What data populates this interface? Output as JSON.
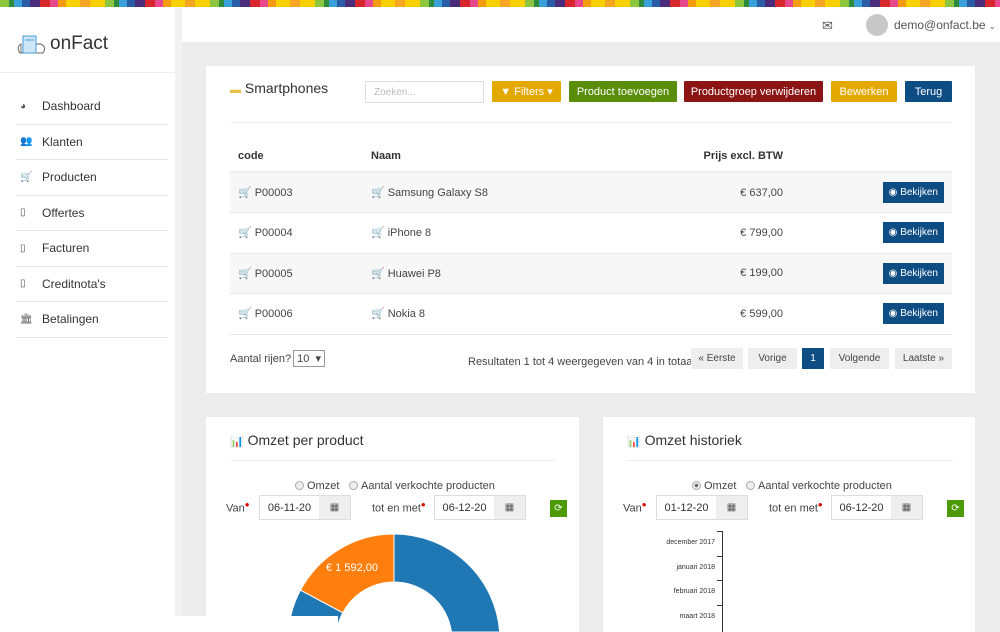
{
  "app": {
    "logo": "onFact",
    "user": "demo@onfact.be"
  },
  "sidebar": {
    "items": [
      {
        "label": "Dashboard",
        "icon": "dashboard-icon"
      },
      {
        "label": "Klanten",
        "icon": "users-icon"
      },
      {
        "label": "Producten",
        "icon": "cart-icon"
      },
      {
        "label": "Offertes",
        "icon": "document-icon"
      },
      {
        "label": "Facturen",
        "icon": "document-icon"
      },
      {
        "label": "Creditnota's",
        "icon": "document-icon"
      },
      {
        "label": "Betalingen",
        "icon": "bank-icon"
      }
    ]
  },
  "group": {
    "title": "Smartphones",
    "search_placeholder": "Zoeken...",
    "filters": "Filters",
    "add": "Product toevoegen",
    "delete": "Productgroep verwijderen",
    "edit": "Bewerken",
    "back": "Terug"
  },
  "table": {
    "headers": [
      "code",
      "Naam",
      "Prijs excl. BTW"
    ],
    "view_label": "Bekijken",
    "rows": [
      {
        "code": "P00003",
        "name": "Samsung Galaxy S8",
        "price": "€ 637,00"
      },
      {
        "code": "P00004",
        "name": "iPhone 8",
        "price": "€ 799,00"
      },
      {
        "code": "P00005",
        "name": "Huawei P8",
        "price": "€ 199,00"
      },
      {
        "code": "P00006",
        "name": "Nokia 8",
        "price": "€ 599,00"
      }
    ]
  },
  "footer": {
    "rows_label": "Aantal rijen?",
    "rows_value": "10",
    "results": "Resultaten 1 tot 4 weergegeven van 4 in totaal",
    "first": "« Eerste",
    "prev": "Vorige",
    "page": "1",
    "next": "Volgende",
    "last": "Laatste »"
  },
  "panels": [
    {
      "title": "Omzet per product",
      "radio1": "Omzet",
      "radio2": "Aantal verkochte producten",
      "selected": "none",
      "from_label": "Van",
      "from": "06-11-20",
      "to_label": "tot en met",
      "to": "06-12-20"
    },
    {
      "title": "Omzet historiek",
      "radio1": "Omzet",
      "radio2": "Aantal verkochte producten",
      "selected": "Omzet",
      "from_label": "Van",
      "from": "01-12-20",
      "to_label": "tot en met",
      "to": "06-12-20"
    }
  ],
  "chart_data": [
    {
      "type": "pie",
      "donut": true,
      "slices": [
        {
          "label": "€ 1 592,00",
          "color": "#ff7f0e"
        },
        {
          "label": "",
          "color": "#1f77b4"
        }
      ]
    },
    {
      "type": "bar",
      "orientation": "horizontal",
      "categories": [
        "december 2017",
        "januari 2018",
        "februari 2018",
        "maart 2018"
      ]
    }
  ],
  "colors": {
    "yellow": "#e3a900",
    "green": "#5a8e0a",
    "red": "#8b1515",
    "blue": "#0e4c84"
  }
}
